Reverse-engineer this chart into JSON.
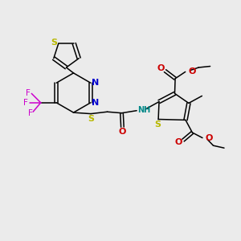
{
  "background_color": "#ebebeb",
  "bond_color": "#000000",
  "figsize": [
    3.0,
    3.0
  ],
  "dpi": 100,
  "colors": {
    "S": "#b8b800",
    "N": "#0000cc",
    "NH": "#008888",
    "O": "#cc0000",
    "F": "#cc00cc",
    "C": "#000000"
  }
}
